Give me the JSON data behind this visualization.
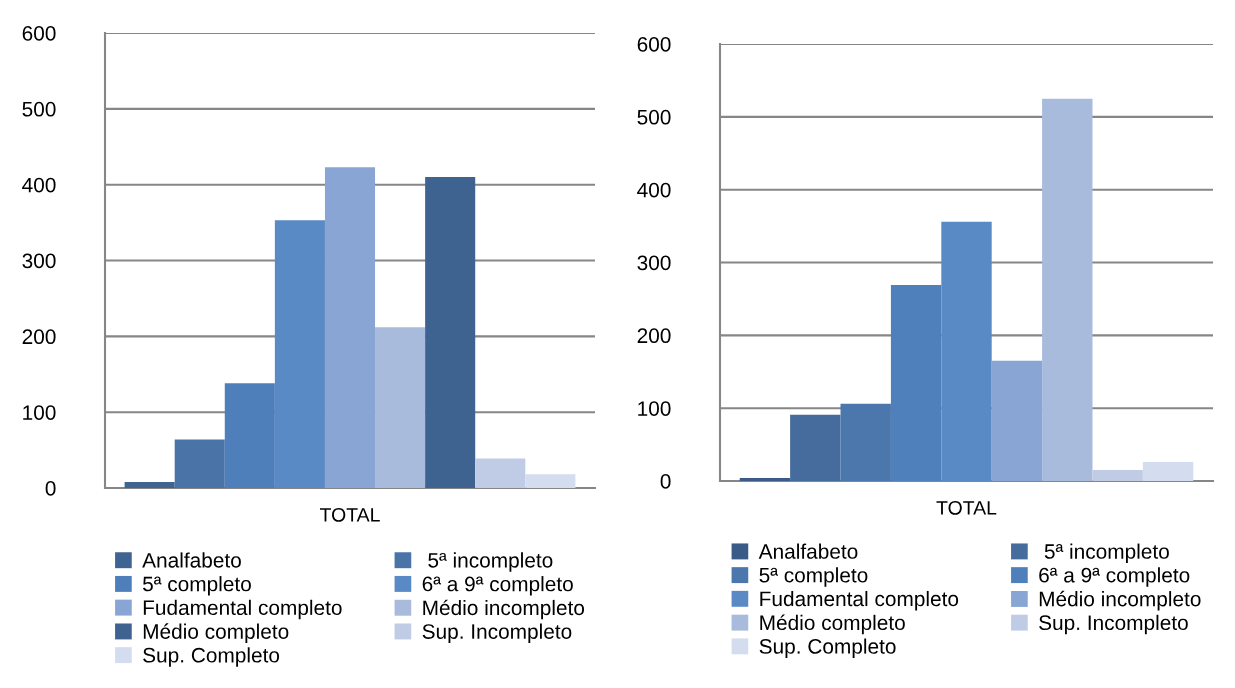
{
  "chart_data": [
    {
      "type": "bar",
      "categories": [
        "TOTAL"
      ],
      "ylim": [
        0,
        600
      ],
      "yticks": [
        0,
        100,
        200,
        300,
        400,
        500,
        600
      ],
      "grid": "y",
      "legend": "bottom",
      "series": [
        {
          "name": "Analfabeto",
          "color": "#3f6491",
          "values": [
            8
          ]
        },
        {
          "name": " 5ª incompleto",
          "color": "#4a74a8",
          "values": [
            64
          ]
        },
        {
          "name": "5ª completo",
          "color": "#4f7fbb",
          "values": [
            138
          ]
        },
        {
          "name": "6ª a 9ª completo",
          "color": "#5a8ac6",
          "values": [
            353
          ]
        },
        {
          "name": "Fudamental completo",
          "color": "#89a5d3",
          "values": [
            423
          ]
        },
        {
          "name": "Médio incompleto",
          "color": "#a8bbdd",
          "values": [
            212
          ]
        },
        {
          "name": "Médio completo",
          "color": "#3e6390",
          "values": [
            410
          ]
        },
        {
          "name": "Sup. Incompleto",
          "color": "#c0cce6",
          "values": [
            39
          ]
        },
        {
          "name": "Sup. Completo",
          "color": "#d4ddef",
          "values": [
            18
          ]
        }
      ]
    },
    {
      "type": "bar",
      "categories": [
        "TOTAL"
      ],
      "ylim": [
        0,
        600
      ],
      "yticks": [
        0,
        100,
        200,
        300,
        400,
        500,
        600
      ],
      "grid": "y",
      "legend": "bottom",
      "series": [
        {
          "name": "Analfabeto",
          "color": "#3a5a88",
          "values": [
            4
          ]
        },
        {
          "name": " 5ª incompleto",
          "color": "#456c9c",
          "values": [
            91
          ]
        },
        {
          "name": "5ª completo",
          "color": "#4b77ac",
          "values": [
            106
          ]
        },
        {
          "name": "6ª a 9ª completo",
          "color": "#5080bb",
          "values": [
            269
          ]
        },
        {
          "name": "Fudamental completo",
          "color": "#5a8ac6",
          "values": [
            356
          ]
        },
        {
          "name": "Médio incompleto",
          "color": "#89a5d3",
          "values": [
            165
          ]
        },
        {
          "name": "Médio completo",
          "color": "#a8bbdd",
          "values": [
            525
          ]
        },
        {
          "name": "Sup. Incompleto",
          "color": "#c0cce6",
          "values": [
            15
          ]
        },
        {
          "name": "Sup. Completo",
          "color": "#d4ddef",
          "values": [
            26
          ]
        }
      ]
    }
  ]
}
